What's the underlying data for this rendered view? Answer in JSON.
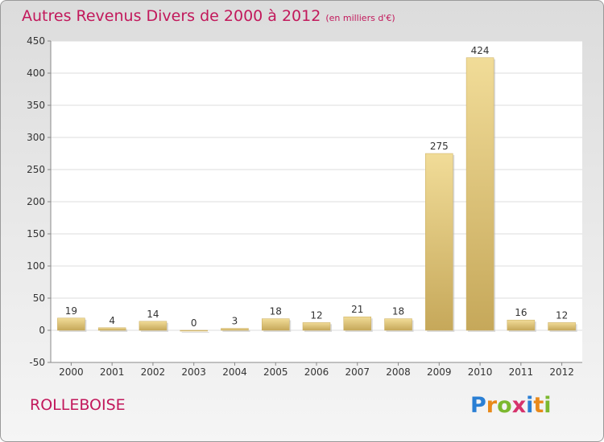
{
  "chart_data": {
    "type": "bar",
    "title": "Autres Revenus Divers de 2000 à 2012",
    "subtitle": "(en milliers d'€)",
    "categories": [
      "2000",
      "2001",
      "2002",
      "2003",
      "2004",
      "2005",
      "2006",
      "2007",
      "2008",
      "2009",
      "2010",
      "2011",
      "2012"
    ],
    "values": [
      19,
      4,
      14,
      0,
      3,
      18,
      12,
      21,
      18,
      275,
      424,
      16,
      12
    ],
    "ylim": [
      -50,
      450
    ],
    "yticks": [
      -50,
      0,
      50,
      100,
      150,
      200,
      250,
      300,
      350,
      400,
      450
    ],
    "grid": true,
    "bar_color": "#d4b86a",
    "title_color": "#c2185b"
  },
  "footer": {
    "commune": "ROLLEBOISE",
    "logo_letters": [
      {
        "char": "P",
        "color": "#2a7fd4"
      },
      {
        "char": "r",
        "color": "#e8891a"
      },
      {
        "char": "o",
        "color": "#7cb82f"
      },
      {
        "char": "x",
        "color": "#d6336c"
      },
      {
        "char": "i",
        "color": "#2a7fd4"
      },
      {
        "char": "t",
        "color": "#e8891a"
      },
      {
        "char": "i",
        "color": "#7cb82f"
      }
    ]
  }
}
